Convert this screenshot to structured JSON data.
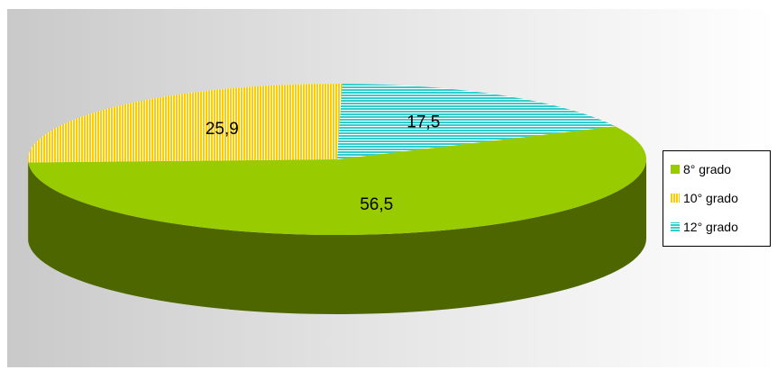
{
  "chart_data": {
    "type": "pie",
    "style": "3d",
    "legend_position": "right",
    "slices": [
      {
        "name": "8° grado",
        "value": 56.5,
        "label": "56,5",
        "color": "#99cc00",
        "side_color": "#4d6600",
        "pattern": "solid"
      },
      {
        "name": "10° grado",
        "value": 25.9,
        "label": "25,9",
        "color": "#ffcc00",
        "side_color": "#8c6c1c",
        "pattern": "vertical-stripes"
      },
      {
        "name": "12° grado",
        "value": 17.5,
        "label": "17,5",
        "color": "#33cccc",
        "side_color": "#2a8a8a",
        "pattern": "horizontal-stripes"
      }
    ]
  },
  "background": {
    "from": "#c9c9c9",
    "to": "#ffffff"
  }
}
